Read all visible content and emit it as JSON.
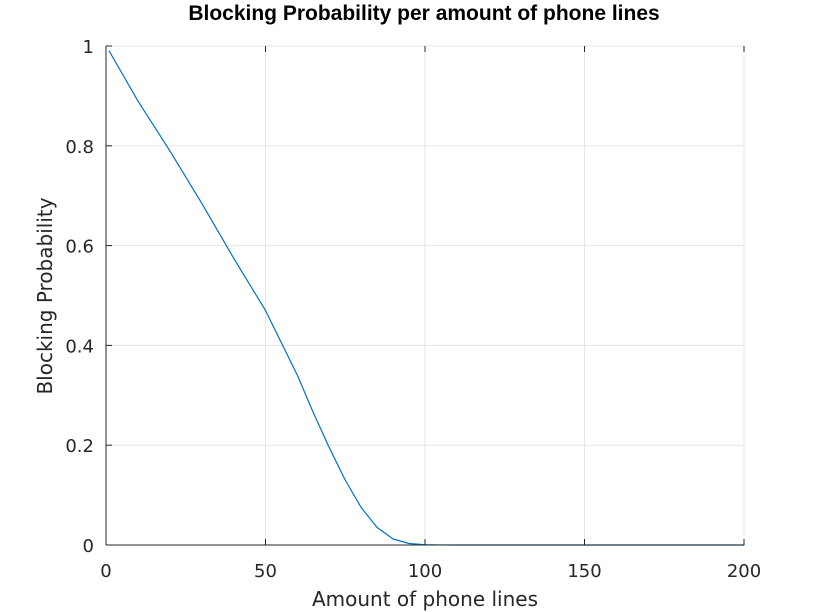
{
  "chart_data": {
    "type": "line",
    "title": "Blocking Probability per amount of phone lines",
    "xlabel": "Amount of phone lines",
    "ylabel": "Blocking Probability",
    "xlim": [
      0,
      200
    ],
    "ylim": [
      0,
      1
    ],
    "xticks": [
      0,
      50,
      100,
      150,
      200
    ],
    "yticks": [
      0,
      0.2,
      0.4,
      0.6,
      0.8,
      1
    ],
    "xtick_labels": [
      "0",
      "50",
      "100",
      "150",
      "200"
    ],
    "ytick_labels": [
      "0",
      "0.2",
      "0.4",
      "0.6",
      "0.8",
      "1"
    ],
    "grid": true,
    "series": [
      {
        "color": "#0072bd",
        "x": [
          1,
          10,
          20,
          30,
          40,
          50,
          55,
          60,
          65,
          70,
          75,
          80,
          85,
          90,
          95,
          100,
          105,
          110,
          120,
          150,
          200
        ],
        "values": [
          0.99,
          0.89,
          0.79,
          0.685,
          0.575,
          0.47,
          0.405,
          0.34,
          0.265,
          0.195,
          0.13,
          0.075,
          0.035,
          0.012,
          0.003,
          0.0005,
          0.0001,
          0.0,
          0.0,
          0.0,
          0.0
        ]
      }
    ]
  }
}
